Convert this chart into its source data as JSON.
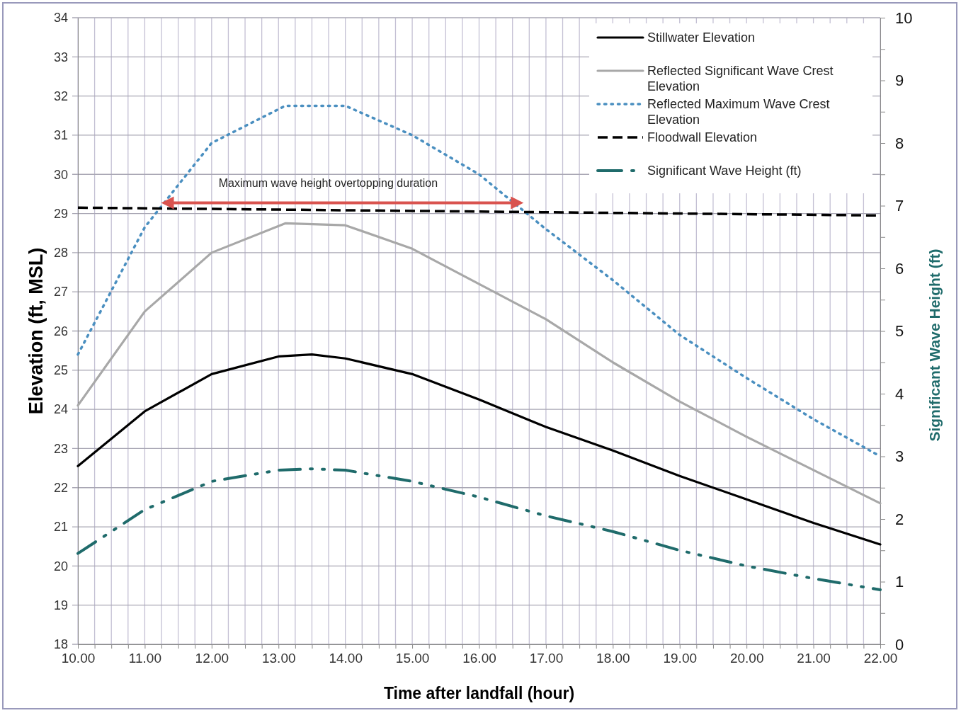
{
  "chart_data": {
    "type": "line",
    "xlabel": "Time after landfall (hour)",
    "ylabel": "Elevation (ft, MSL)",
    "y2label": "Significant Wave Height (ft)",
    "annotations": [
      "Maximum wave height overtopping duration"
    ],
    "xlim": [
      10,
      22
    ],
    "xticks": [
      {
        "value": 10,
        "label": "10.00"
      },
      {
        "value": 10.25,
        "label": null
      },
      {
        "value": 10.5,
        "label": null
      },
      {
        "value": 10.75,
        "label": null
      },
      {
        "value": 11,
        "label": "11.00"
      },
      {
        "value": 11.25,
        "label": null
      },
      {
        "value": 11.5,
        "label": null
      },
      {
        "value": 11.75,
        "label": null
      },
      {
        "value": 12,
        "label": "12.00"
      },
      {
        "value": 12.25,
        "label": null
      },
      {
        "value": 12.5,
        "label": null
      },
      {
        "value": 12.75,
        "label": null
      },
      {
        "value": 13,
        "label": "13.00"
      },
      {
        "value": 13.25,
        "label": null
      },
      {
        "value": 13.5,
        "label": null
      },
      {
        "value": 13.75,
        "label": null
      },
      {
        "value": 14,
        "label": "14.00"
      },
      {
        "value": 14.25,
        "label": null
      },
      {
        "value": 14.5,
        "label": null
      },
      {
        "value": 14.75,
        "label": null
      },
      {
        "value": 15,
        "label": "15.00"
      },
      {
        "value": 15.25,
        "label": null
      },
      {
        "value": 15.5,
        "label": null
      },
      {
        "value": 15.75,
        "label": null
      },
      {
        "value": 16,
        "label": "16.00"
      },
      {
        "value": 16.25,
        "label": null
      },
      {
        "value": 16.5,
        "label": null
      },
      {
        "value": 16.75,
        "label": null
      },
      {
        "value": 17,
        "label": "17.00"
      },
      {
        "value": 17.25,
        "label": null
      },
      {
        "value": 17.5,
        "label": null
      },
      {
        "value": 17.75,
        "label": null
      },
      {
        "value": 18,
        "label": "18.00"
      },
      {
        "value": 18.25,
        "label": null
      },
      {
        "value": 18.5,
        "label": null
      },
      {
        "value": 18.75,
        "label": null
      },
      {
        "value": 19,
        "label": "19.00"
      },
      {
        "value": 19.25,
        "label": null
      },
      {
        "value": 19.5,
        "label": null
      },
      {
        "value": 19.75,
        "label": null
      },
      {
        "value": 20,
        "label": "20.00"
      },
      {
        "value": 20.25,
        "label": null
      },
      {
        "value": 20.5,
        "label": null
      },
      {
        "value": 20.75,
        "label": null
      },
      {
        "value": 21,
        "label": "21.00"
      },
      {
        "value": 21.25,
        "label": null
      },
      {
        "value": 21.5,
        "label": null
      },
      {
        "value": 21.75,
        "label": null
      },
      {
        "value": 22,
        "label": "22.00"
      }
    ],
    "ylim": [
      18,
      34
    ],
    "yticks": [
      18,
      19,
      20,
      21,
      22,
      23,
      24,
      25,
      26,
      27,
      28,
      29,
      30,
      31,
      32,
      33,
      34
    ],
    "y2lim": [
      0,
      10
    ],
    "y2ticks": [
      0,
      {
        "value": 0.5,
        "label": null
      },
      1,
      {
        "value": 1.5,
        "label": null
      },
      2,
      {
        "value": 2.5,
        "label": null
      },
      3,
      {
        "value": 3.5,
        "label": null
      },
      4,
      {
        "value": 4.5,
        "label": null
      },
      5,
      {
        "value": 5.5,
        "label": null
      },
      6,
      {
        "value": 6.5,
        "label": null
      },
      7,
      {
        "value": 7.5,
        "label": null
      },
      8,
      {
        "value": 8.5,
        "label": null
      },
      9,
      {
        "value": 9.5,
        "label": null
      },
      10
    ],
    "grid": true,
    "legend": "top right",
    "marker": "none",
    "series": [
      {
        "name": "Stillwater Elevation",
        "color": "#000000",
        "line_style": "solid",
        "x": [
          10,
          11,
          12,
          13,
          13.5,
          14,
          15,
          16,
          17,
          18,
          19,
          20,
          21,
          22
        ],
        "values": [
          22.55,
          23.95,
          24.9,
          25.35,
          25.4,
          25.3,
          24.9,
          24.25,
          23.55,
          22.95,
          22.3,
          21.7,
          21.1,
          20.55
        ]
      },
      {
        "name": "Reflected Significant Wave Crest Elevation",
        "color": "#a8a8a8",
        "line_style": "solid",
        "x": [
          10,
          11,
          12,
          13.1,
          14,
          15,
          16,
          17,
          18,
          19,
          20,
          21,
          22
        ],
        "values": [
          24.1,
          26.5,
          28.0,
          28.75,
          28.7,
          28.1,
          27.2,
          26.3,
          25.2,
          24.2,
          23.3,
          22.45,
          21.6
        ]
      },
      {
        "name": "Reflected Maximum Wave Crest Elevation",
        "color": "#4a8fc0",
        "line_style": "dotted",
        "x": [
          10,
          11,
          12,
          13.1,
          14,
          15,
          16,
          17,
          18,
          19,
          20,
          21,
          22
        ],
        "values": [
          25.4,
          28.65,
          30.8,
          31.75,
          31.75,
          31.0,
          30.0,
          28.6,
          27.3,
          25.9,
          24.8,
          23.75,
          22.8
        ]
      },
      {
        "name": "Floodwall Elevation",
        "color": "#000000",
        "line_style": "dashed",
        "x": [
          10,
          22
        ],
        "values": [
          29.15,
          28.95
        ]
      },
      {
        "name": "Significant Wave Height (ft)",
        "color": "#1f6b6b",
        "line_style": "dashdot",
        "axis": "y2",
        "x": [
          10,
          11,
          12,
          13,
          13.5,
          14,
          15,
          16,
          17,
          18,
          19,
          20,
          21,
          22
        ],
        "values": [
          1.45,
          2.15,
          2.6,
          2.78,
          2.8,
          2.78,
          2.6,
          2.35,
          2.05,
          1.8,
          1.5,
          1.25,
          1.05,
          0.87
        ]
      }
    ]
  }
}
